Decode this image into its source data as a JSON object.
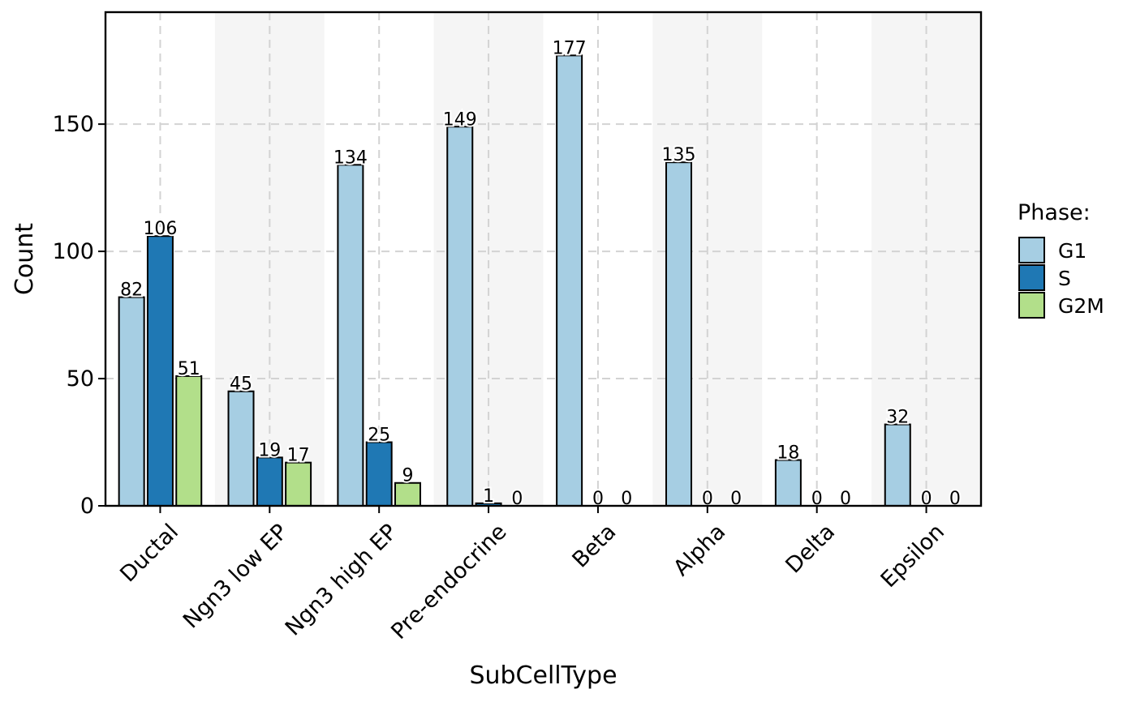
{
  "chart_data": {
    "type": "bar",
    "title": "",
    "xlabel": "SubCellType",
    "ylabel": "Count",
    "ylim": [
      0,
      194
    ],
    "yticks": [
      0,
      50,
      100,
      150
    ],
    "grid": true,
    "categories": [
      "Ductal",
      "Ngn3 low EP",
      "Ngn3 high EP",
      "Pre-endocrine",
      "Beta",
      "Alpha",
      "Delta",
      "Epsilon"
    ],
    "series": [
      {
        "name": "G1",
        "color": "#A6CEE3",
        "values": [
          82,
          45,
          134,
          149,
          177,
          135,
          18,
          32
        ]
      },
      {
        "name": "S",
        "color": "#1F78B4",
        "values": [
          106,
          19,
          25,
          1,
          0,
          0,
          0,
          0
        ]
      },
      {
        "name": "G2M",
        "color": "#B2DF8A",
        "values": [
          51,
          17,
          9,
          0,
          0,
          0,
          0,
          0
        ]
      }
    ],
    "legend": {
      "title": "Phase:",
      "position": "right"
    },
    "alternating_band_color": "#F5F5F5",
    "grid_color": "#D3D3D3"
  }
}
